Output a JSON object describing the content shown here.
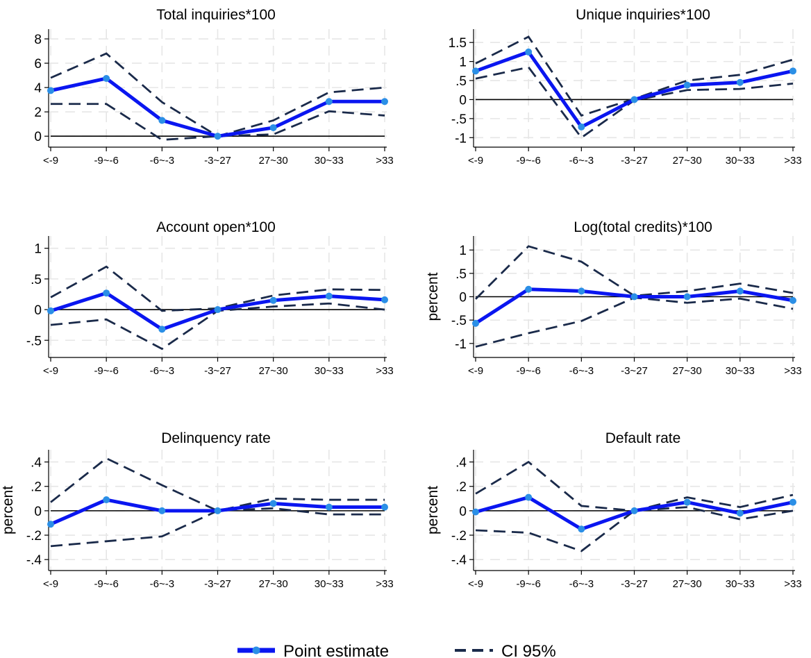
{
  "colors": {
    "point_line": "#0a16f0",
    "point_marker": "#2b8fe6",
    "ci_line": "#1a2a4a",
    "zero_line": "#000000",
    "grid": "#e6e6e6"
  },
  "legend": {
    "placement": "bottom-center",
    "point_label": "Point estimate",
    "ci_label": "CI 95%"
  },
  "chart_data": [
    {
      "type": "line",
      "title": "Total inquiries*100",
      "ylabel": "",
      "categories": [
        "<-9",
        "-9~-6",
        "-6~-3",
        "-3~27",
        "27~30",
        "30~33",
        ">33"
      ],
      "ylim": [
        -0.9,
        8.8
      ],
      "yticks": [
        0,
        2,
        4,
        6,
        8
      ],
      "ytick_labels": [
        "0",
        "2",
        "4",
        "6",
        "8"
      ],
      "grid": true,
      "series": [
        {
          "name": "Point estimate",
          "values": [
            3.75,
            4.75,
            1.3,
            0.0,
            0.7,
            2.85,
            2.85
          ]
        },
        {
          "name": "CI 95%",
          "values": [
            4.8,
            6.8,
            2.8,
            0.0,
            1.3,
            3.6,
            4.0
          ]
        },
        {
          "name": "CI 95%",
          "values": [
            2.65,
            2.65,
            -0.3,
            0.0,
            0.15,
            2.05,
            1.7
          ]
        }
      ]
    },
    {
      "type": "line",
      "title": "Unique inquiries*100",
      "ylabel": "",
      "categories": [
        "<-9",
        "-9~-6",
        "-6~-3",
        "-3~27",
        "27~30",
        "30~33",
        ">33"
      ],
      "ylim": [
        -1.25,
        1.85
      ],
      "yticks": [
        -1,
        -0.5,
        0,
        0.5,
        1,
        1.5
      ],
      "ytick_labels": [
        "-1",
        "-.5",
        "0",
        ".5",
        "1",
        "1.5"
      ],
      "grid": true,
      "series": [
        {
          "name": "Point estimate",
          "values": [
            0.75,
            1.25,
            -0.72,
            0.0,
            0.38,
            0.45,
            0.75
          ]
        },
        {
          "name": "CI 95%",
          "values": [
            0.95,
            1.65,
            -0.42,
            0.02,
            0.5,
            0.65,
            1.05
          ]
        },
        {
          "name": "CI 95%",
          "values": [
            0.55,
            0.85,
            -1.0,
            -0.02,
            0.25,
            0.28,
            0.42
          ]
        }
      ]
    },
    {
      "type": "line",
      "title": "Account open*100",
      "ylabel": "",
      "categories": [
        "<-9",
        "-9~-6",
        "-6~-3",
        "-3~27",
        "27~30",
        "30~33",
        ">33"
      ],
      "ylim": [
        -0.78,
        1.2
      ],
      "yticks": [
        -0.5,
        0,
        0.5,
        1
      ],
      "ytick_labels": [
        "-.5",
        "0",
        ".5",
        "1"
      ],
      "grid": true,
      "series": [
        {
          "name": "Point estimate",
          "values": [
            -0.02,
            0.27,
            -0.32,
            0.0,
            0.15,
            0.22,
            0.16
          ]
        },
        {
          "name": "CI 95%",
          "values": [
            0.2,
            0.7,
            -0.02,
            0.02,
            0.23,
            0.33,
            0.32
          ]
        },
        {
          "name": "CI 95%",
          "values": [
            -0.25,
            -0.16,
            -0.64,
            -0.02,
            0.05,
            0.1,
            0.0
          ]
        }
      ]
    },
    {
      "type": "line",
      "title": "Log(total credits)*100",
      "ylabel": "percent",
      "categories": [
        "<-9",
        "-9~-6",
        "-6~-3",
        "-3~27",
        "27~30",
        "30~33",
        ">33"
      ],
      "ylim": [
        -1.3,
        1.3
      ],
      "yticks": [
        -1,
        -0.5,
        0,
        0.5,
        1
      ],
      "ytick_labels": [
        "-1",
        "-.5",
        "0",
        ".5",
        "1"
      ],
      "grid": true,
      "series": [
        {
          "name": "Point estimate",
          "values": [
            -0.57,
            0.16,
            0.12,
            0.0,
            0.0,
            0.12,
            -0.08
          ]
        },
        {
          "name": "CI 95%",
          "values": [
            -0.05,
            1.08,
            0.75,
            0.02,
            0.12,
            0.28,
            0.08
          ]
        },
        {
          "name": "CI 95%",
          "values": [
            -1.07,
            -0.78,
            -0.52,
            -0.02,
            -0.13,
            -0.04,
            -0.26
          ]
        }
      ]
    },
    {
      "type": "line",
      "title": "Delinquency rate",
      "ylabel": "percent",
      "categories": [
        "<-9",
        "-9~-6",
        "-6~-3",
        "-3~27",
        "27~30",
        "30~33",
        ">33"
      ],
      "ylim": [
        -0.49,
        0.5
      ],
      "yticks": [
        -0.4,
        -0.2,
        0,
        0.2,
        0.4
      ],
      "ytick_labels": [
        "-.4",
        "-.2",
        "0",
        ".2",
        ".4"
      ],
      "grid": true,
      "series": [
        {
          "name": "Point estimate",
          "values": [
            -0.11,
            0.09,
            0.0,
            0.0,
            0.06,
            0.03,
            0.03
          ]
        },
        {
          "name": "CI 95%",
          "values": [
            0.07,
            0.43,
            0.21,
            0.0,
            0.1,
            0.09,
            0.09
          ]
        },
        {
          "name": "CI 95%",
          "values": [
            -0.29,
            -0.25,
            -0.21,
            0.0,
            0.02,
            -0.03,
            -0.03
          ]
        }
      ]
    },
    {
      "type": "line",
      "title": "Default rate",
      "ylabel": "percent",
      "categories": [
        "<-9",
        "-9~-6",
        "-6~-3",
        "-3~27",
        "27~30",
        "30~33",
        ">33"
      ],
      "ylim": [
        -0.49,
        0.5
      ],
      "yticks": [
        -0.4,
        -0.2,
        0,
        0.2,
        0.4
      ],
      "ytick_labels": [
        "-.4",
        "-.2",
        "0",
        ".2",
        ".4"
      ],
      "grid": true,
      "series": [
        {
          "name": "Point estimate",
          "values": [
            -0.01,
            0.11,
            -0.15,
            0.0,
            0.07,
            -0.02,
            0.07
          ]
        },
        {
          "name": "CI 95%",
          "values": [
            0.14,
            0.4,
            0.04,
            0.0,
            0.11,
            0.03,
            0.13
          ]
        },
        {
          "name": "CI 95%",
          "values": [
            -0.16,
            -0.18,
            -0.33,
            0.0,
            0.03,
            -0.07,
            0.0
          ]
        }
      ]
    }
  ]
}
